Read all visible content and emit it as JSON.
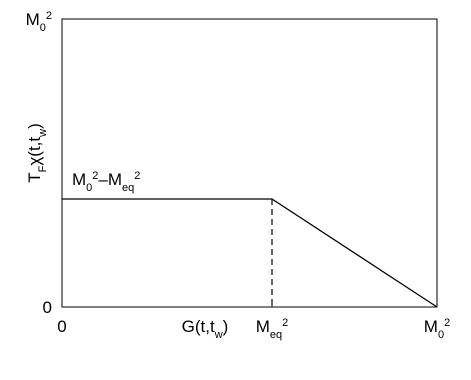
{
  "chart_data": {
    "type": "line",
    "x_label": [
      "G(t,t",
      {
        "sub": "w"
      },
      ")"
    ],
    "y_label": [
      "T",
      {
        "sub": "F"
      },
      "χ(t,t",
      {
        "sub": "w"
      },
      ")"
    ],
    "annotation": [
      "M",
      {
        "sub": "0"
      },
      {
        "sup": "2"
      },
      "–M",
      {
        "sub": "eq"
      },
      {
        "sup": "2"
      }
    ],
    "series": [
      {
        "color": "#000000",
        "x": [
          0,
          0.56,
          1
        ],
        "values": [
          0.375,
          0.375,
          0
        ]
      }
    ],
    "dashed_drop": true,
    "xlim": [
      0,
      1
    ],
    "ylim": [
      0,
      1
    ],
    "xticks": [
      {
        "value": 0,
        "label": [
          "0"
        ]
      },
      {
        "value": 0.56,
        "label": [
          "M",
          {
            "sub": "eq"
          },
          {
            "sup": "2"
          }
        ]
      },
      {
        "value": 1,
        "label": [
          "M",
          {
            "sub": "0"
          },
          {
            "sup": "2"
          }
        ]
      }
    ],
    "yticks": [
      {
        "value": 0,
        "label": [
          "0"
        ]
      },
      {
        "value": 1,
        "label": [
          "M",
          {
            "sub": "0"
          },
          {
            "sup": "2"
          }
        ]
      }
    ]
  }
}
